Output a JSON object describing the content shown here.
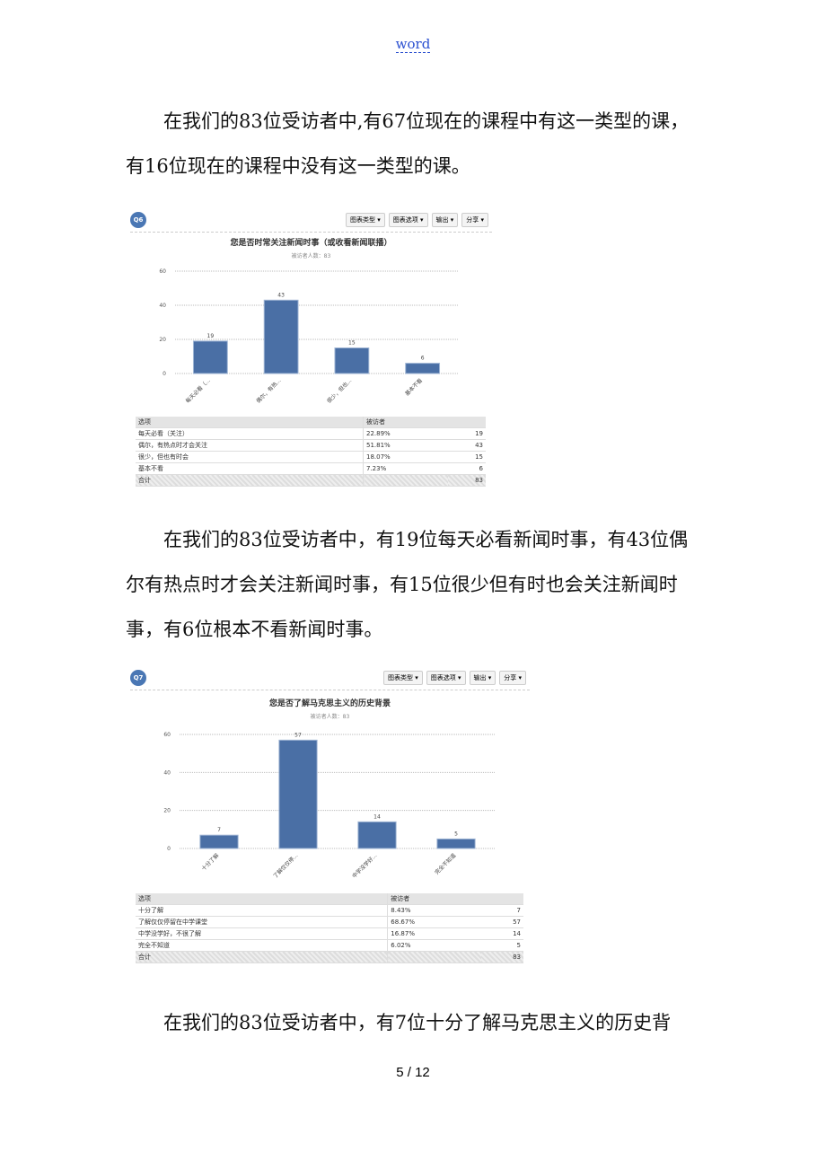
{
  "header": {
    "link": "word"
  },
  "paragraphs": [
    "在我们的83位受访者中,有67位现在的课程中有这一类型的课，有16位现在的课程中没有这一类型的课。",
    "在我们的83位受访者中，有19位每天必看新闻时事，有43位偶尔有热点时才会关注新闻时事，有15位很少但有时也会关注新闻时事，有6位根本不看新闻时事。",
    "在我们的83位受访者中，有7位十分了解马克思主义的历史背"
  ],
  "panels": [
    {
      "badge": "Q6",
      "buttons": [
        "图表类型",
        "图表选项",
        "输出",
        "分享"
      ],
      "table": {
        "columns": [
          "选项",
          "被访者"
        ],
        "rows": [
          [
            "每天必看（关注）",
            "22.89%",
            19
          ],
          [
            "偶尔，有热点时才会关注",
            "51.81%",
            43
          ],
          [
            "很少，但也有时会",
            "18.07%",
            15
          ],
          [
            "基本不看",
            "7.23%",
            6
          ]
        ],
        "total": {
          "label": "合计",
          "count": 83
        }
      }
    },
    {
      "badge": "Q7",
      "buttons": [
        "图表类型",
        "图表选项",
        "输出",
        "分享"
      ],
      "table": {
        "columns": [
          "选项",
          "被访者"
        ],
        "rows": [
          [
            "十分了解",
            "8.43%",
            7
          ],
          [
            "了解仅仅停留在中学课堂",
            "68.67%",
            57
          ],
          [
            "中学没学好，不很了解",
            "16.87%",
            14
          ],
          [
            "完全不知道",
            "6.02%",
            5
          ]
        ],
        "total": {
          "label": "合计",
          "count": 83
        }
      }
    }
  ],
  "chart_data": [
    {
      "type": "bar",
      "title": "您是否时常关注新闻时事（或收看新闻联播）",
      "subtitle": "被访者人数：83",
      "categories": [
        "每天必看（...",
        "偶尔，有热...",
        "很少，但也...",
        "基本不看"
      ],
      "values": [
        19,
        43,
        15,
        6
      ],
      "color": "#4a6fa5",
      "ylim": [
        0,
        60
      ],
      "yticks": [
        0,
        20,
        40,
        60
      ],
      "grid": true
    },
    {
      "type": "bar",
      "title": "您是否了解马克思主义的历史背景",
      "subtitle": "被访者人数：83",
      "categories": [
        "十分了解",
        "了解仅仅停...",
        "中学没学好...",
        "完全不知道"
      ],
      "values": [
        7,
        57,
        14,
        5
      ],
      "color": "#4a6fa5",
      "ylim": [
        0,
        60
      ],
      "yticks": [
        0,
        20,
        40,
        60
      ],
      "grid": true
    }
  ],
  "footer": {
    "page": "5 / 12"
  }
}
